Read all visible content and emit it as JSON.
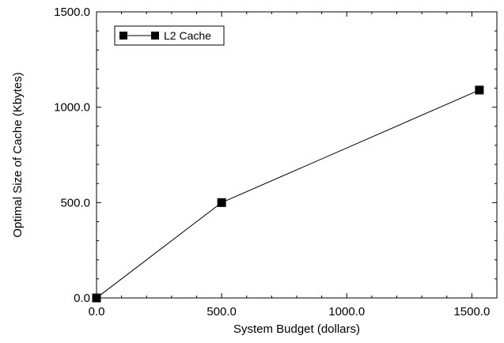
{
  "chart_data": {
    "type": "line",
    "title": "",
    "xlabel": "System Budget (dollars)",
    "ylabel": "Optimal Size of Cache (Kbytes)",
    "xlim": [
      0,
      1600
    ],
    "ylim": [
      0,
      1500
    ],
    "x_ticks": [
      0,
      500,
      1000,
      1500
    ],
    "x_tick_labels": [
      "0.0",
      "500.0",
      "1000.0",
      "1500.0"
    ],
    "y_ticks": [
      0,
      500,
      1000,
      1500
    ],
    "y_tick_labels": [
      "0.0",
      "500.0",
      "1000.0",
      "1500.0"
    ],
    "grid": false,
    "legend_position": "top-left",
    "series": [
      {
        "name": "L2 Cache",
        "marker": "square",
        "color": "#000000",
        "x": [
          0,
          500,
          1530
        ],
        "y": [
          0,
          500,
          1090
        ]
      }
    ]
  }
}
